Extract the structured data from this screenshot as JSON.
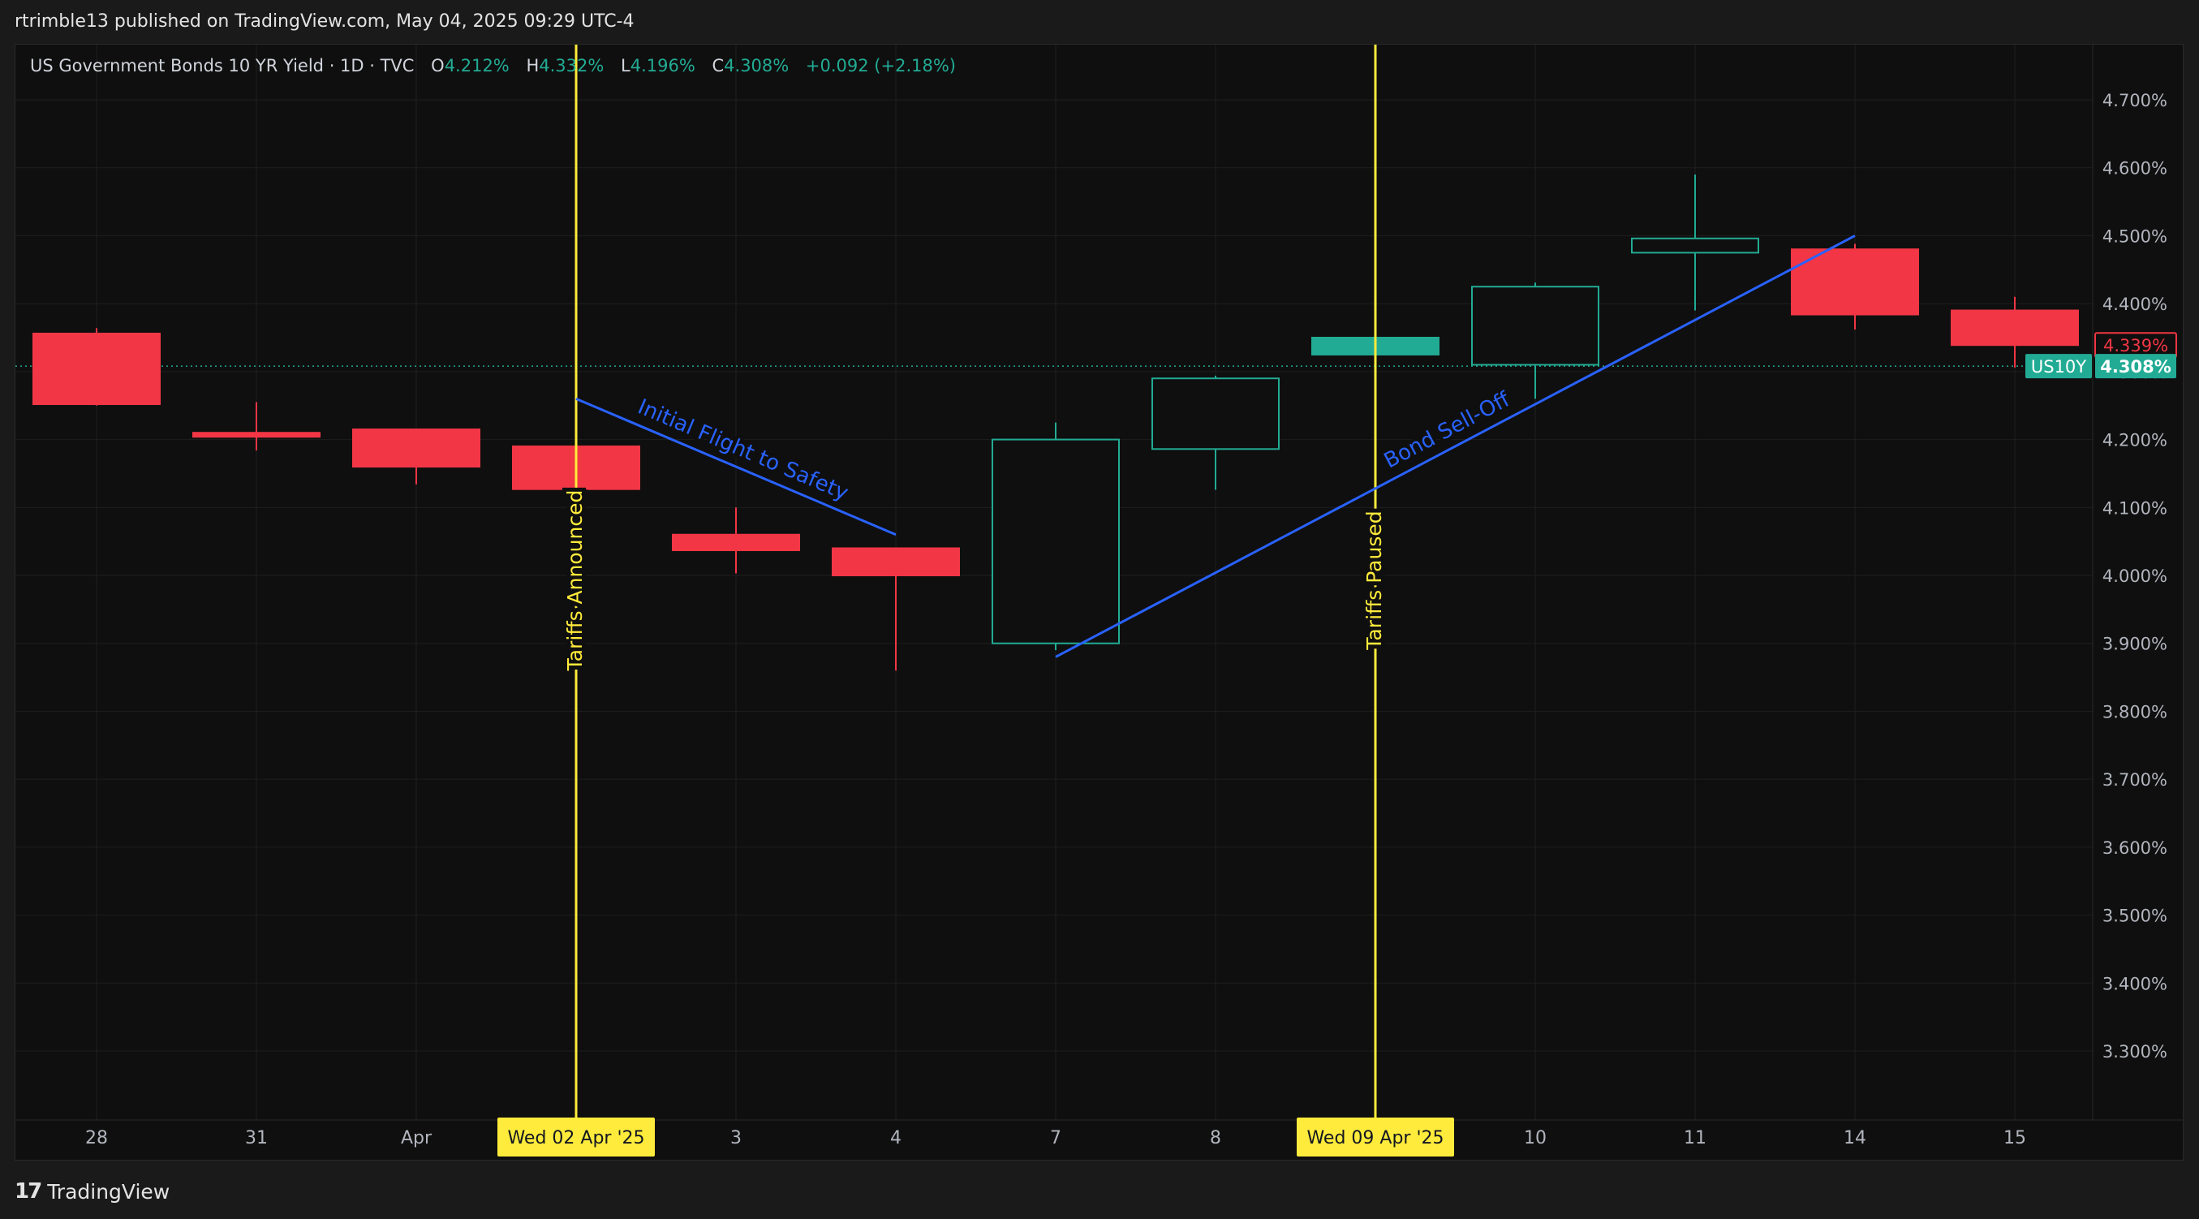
{
  "header": {
    "published": "rtrimble13 published on TradingView.com, May 04, 2025 09:29 UTC-4"
  },
  "legend": {
    "symbol": "US Government Bonds 10 YR Yield · 1D · TVC",
    "o_label": "O",
    "o_value": "4.212%",
    "h_label": "H",
    "h_value": "4.332%",
    "l_label": "L",
    "l_value": "4.196%",
    "c_label": "C",
    "c_value": "4.308%",
    "change": "+0.092 (+2.18%)"
  },
  "footer": {
    "brand": "TradingView",
    "logo_text": "17"
  },
  "colors": {
    "up": "#22ab94",
    "down": "#f23645",
    "event_line": "#ffeb3b",
    "trend_line": "#2962ff",
    "grid": "#1f1f1f",
    "axis_text": "#b2b5be"
  },
  "chart_data": {
    "type": "candlestick",
    "title": "US Government Bonds 10 YR Yield · 1D · TVC",
    "x_ticks": [
      "28",
      "31",
      "Apr",
      "Wed 02 Apr '25",
      "3",
      "4",
      "7",
      "8",
      "Wed 09 Apr '25",
      "10",
      "11",
      "14",
      "15"
    ],
    "y_ticks": [
      "3.300%",
      "3.400%",
      "3.500%",
      "3.600%",
      "3.700%",
      "3.800%",
      "3.900%",
      "4.000%",
      "4.100%",
      "4.200%",
      "4.300%",
      "4.400%",
      "4.500%",
      "4.600%",
      "4.700%"
    ],
    "ylim": [
      3.18,
      4.75
    ],
    "candles": [
      {
        "date": "28",
        "open": 4.356,
        "high": 4.364,
        "low": 4.25,
        "close": 4.252
      },
      {
        "date": "31",
        "open": 4.21,
        "high": 4.255,
        "low": 4.184,
        "close": 4.204
      },
      {
        "date": "Apr",
        "open": 4.215,
        "high": 4.215,
        "low": 4.134,
        "close": 4.16
      },
      {
        "date": "Wed 02 Apr '25",
        "open": 4.19,
        "high": 4.19,
        "low": 4.126,
        "close": 4.127
      },
      {
        "date": "3",
        "open": 4.06,
        "high": 4.1,
        "low": 4.003,
        "close": 4.037
      },
      {
        "date": "4",
        "open": 4.04,
        "high": 4.04,
        "low": 3.86,
        "close": 4.0
      },
      {
        "date": "7",
        "open": 3.9,
        "high": 4.225,
        "low": 3.89,
        "close": 4.2
      },
      {
        "date": "8",
        "open": 4.186,
        "high": 4.294,
        "low": 4.126,
        "close": 4.29
      },
      {
        "date": "Wed 09 Apr '25",
        "open": 4.325,
        "high": 4.35,
        "low": 4.325,
        "close": 4.35
      },
      {
        "date": "10",
        "open": 4.31,
        "high": 4.431,
        "low": 4.26,
        "close": 4.425
      },
      {
        "date": "11",
        "open": 4.475,
        "high": 4.59,
        "low": 4.39,
        "close": 4.496
      },
      {
        "date": "14",
        "open": 4.48,
        "high": 4.488,
        "low": 4.362,
        "close": 4.384
      },
      {
        "date": "15",
        "open": 4.39,
        "high": 4.41,
        "low": 4.306,
        "close": 4.339
      }
    ],
    "last_price": 4.308,
    "price_labels": [
      {
        "text": "4.339%",
        "value": 4.339,
        "color": "#f23645"
      },
      {
        "text": "US10Y",
        "value": 4.308,
        "color": "#22ab94"
      },
      {
        "text": "4.308%",
        "value": 4.308,
        "color": "#22ab94"
      }
    ],
    "event_lines": [
      {
        "date": "Wed 02 Apr '25",
        "label": "Tariffs Announced"
      },
      {
        "date": "Wed 09 Apr '25",
        "label": "Tariffs Paused"
      }
    ],
    "trend_lines": [
      {
        "label": "Initial Flight to Safety",
        "from": {
          "date": "Wed 02 Apr '25",
          "value": 4.26
        },
        "to": {
          "date": "4",
          "value": 4.06
        }
      },
      {
        "label": "Bond Sell-Off",
        "from": {
          "date": "7",
          "value": 3.88
        },
        "to": {
          "date": "14",
          "value": 4.5
        }
      }
    ]
  }
}
